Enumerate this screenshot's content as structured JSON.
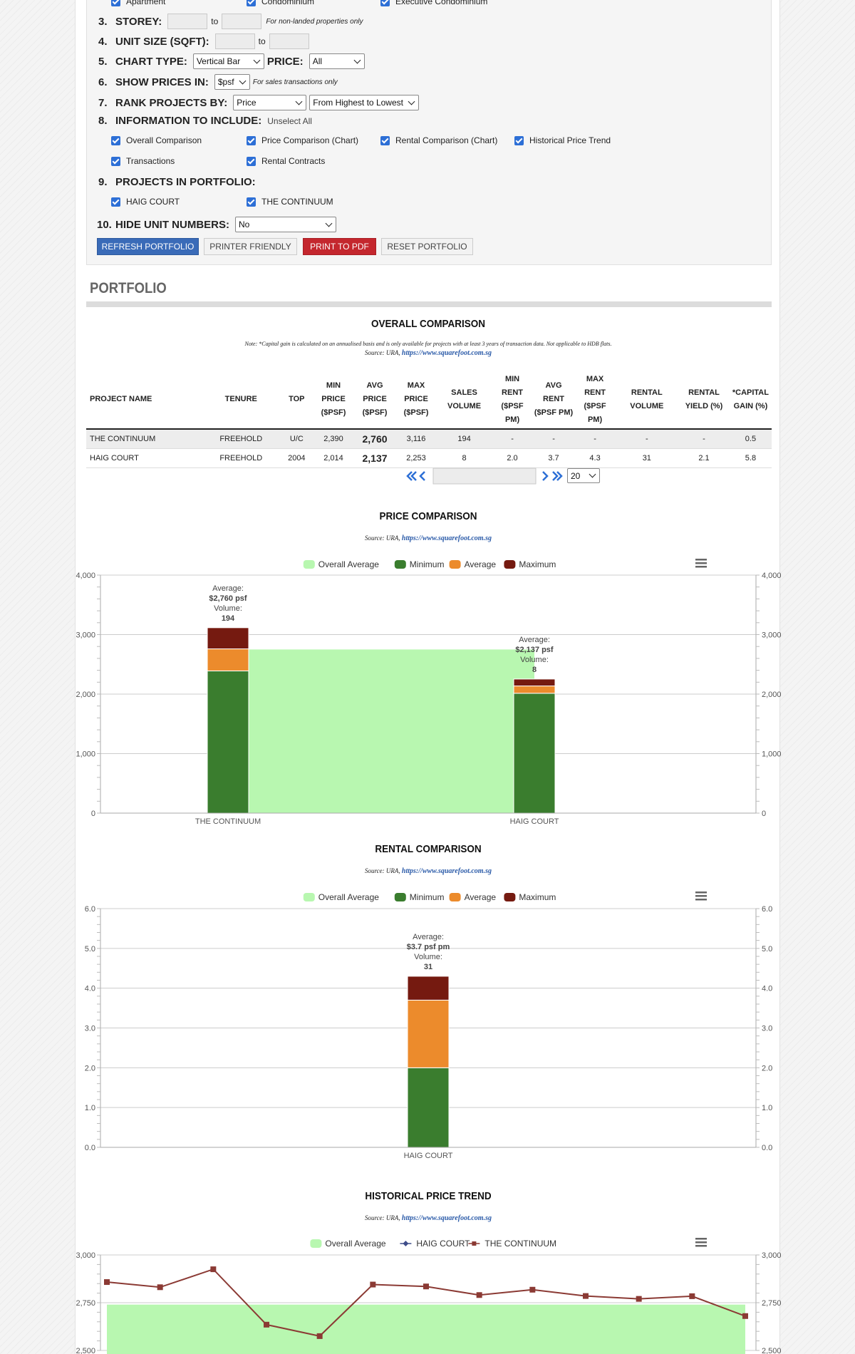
{
  "form": {
    "top_options": [
      {
        "label": "Apartment"
      },
      {
        "label": "Condominium"
      },
      {
        "label": "Executive Condominium"
      }
    ],
    "storey": {
      "num": "3.",
      "label": "STOREY:",
      "to": "to",
      "hint": "For non-landed properties only"
    },
    "unit_size": {
      "num": "4.",
      "label": "UNIT SIZE (SQFT):",
      "to": "to"
    },
    "chart_type": {
      "num": "5.",
      "label": "CHART TYPE:",
      "value": "Vertical Bar",
      "price_label": "PRICE:",
      "price_value": "All"
    },
    "show_prices": {
      "num": "6.",
      "label": "SHOW PRICES IN:",
      "value": "$psf",
      "hint": "For sales transactions only"
    },
    "rank": {
      "num": "7.",
      "label": "RANK PROJECTS BY:",
      "value": "Price",
      "order": "From Highest to Lowest"
    },
    "info": {
      "num": "8.",
      "label": "INFORMATION TO INCLUDE:",
      "unselect": "Unselect All",
      "options": [
        "Overall Comparison",
        "Price Comparison (Chart)",
        "Rental Comparison (Chart)",
        "Historical Price Trend",
        "Transactions",
        "Rental Contracts"
      ]
    },
    "projects": {
      "num": "9.",
      "label": "PROJECTS IN PORTFOLIO:",
      "items": [
        "HAIG COURT",
        "THE CONTINUUM"
      ]
    },
    "hide_units": {
      "num": "10.",
      "label": "HIDE UNIT NUMBERS:",
      "value": "No"
    },
    "buttons": {
      "refresh": "REFRESH PORTFOLIO",
      "printer": "PRINTER FRIENDLY",
      "pdf": "PRINT TO PDF",
      "reset": "RESET PORTFOLIO"
    }
  },
  "portfolio": {
    "title": "PORTFOLIO"
  },
  "overall": {
    "title": "OVERALL COMPARISON",
    "note": "Note: *Capital gain is calculated on an annualised basis and is only available for projects with at least 3 years of transaction data. Not applicable to HDB flats.",
    "source_prefix": "Source: URA,",
    "source_link": "https://www.squarefoot.com.sg",
    "headers": [
      "PROJECT NAME",
      "TENURE",
      "TOP",
      "MIN PRICE ($PSF)",
      "AVG PRICE ($PSF)",
      "MAX PRICE ($PSF)",
      "SALES VOLUME",
      "MIN RENT ($PSF PM)",
      "AVG RENT ($PSF PM)",
      "MAX RENT ($PSF PM)",
      "RENTAL VOLUME",
      "RENTAL YIELD (%)",
      "*CAPITAL GAIN (%)"
    ],
    "rows": [
      [
        "THE CONTINUUM",
        "FREEHOLD",
        "U/C",
        "2,390",
        "2,760",
        "3,116",
        "194",
        "-",
        "-",
        "-",
        "-",
        "-",
        "0.5"
      ],
      [
        "HAIG COURT",
        "FREEHOLD",
        "2004",
        "2,014",
        "2,137",
        "2,253",
        "8",
        "2.0",
        "3.7",
        "4.3",
        "31",
        "2.1",
        "5.8"
      ]
    ],
    "page_size": "20"
  },
  "colors": {
    "overall_avg": "#b8f7b0",
    "minimum": "#3a7d2e",
    "average": "#ec8b2c",
    "maximum": "#751a10",
    "line_continuum": "#8b3a34",
    "line_haig": "#3f4d8a",
    "brand_blue": "#3a6bb8",
    "brand_red": "#c4272e"
  },
  "chart_data": [
    {
      "type": "bar",
      "title": "PRICE COMPARISON",
      "source_prefix": "Source: URA,",
      "source_link": "https://www.squarefoot.com.sg",
      "legend": [
        "Overall Average",
        "Minimum",
        "Average",
        "Maximum"
      ],
      "categories": [
        "THE CONTINUUM",
        "HAIG COURT"
      ],
      "series": [
        {
          "name": "Minimum",
          "values": [
            2390,
            2014
          ]
        },
        {
          "name": "Average",
          "values": [
            2760,
            2137
          ]
        },
        {
          "name": "Maximum",
          "values": [
            3116,
            2253
          ]
        }
      ],
      "overall_average": 2750,
      "ylim": [
        0,
        4000
      ],
      "yticks": [
        "0",
        "1,000",
        "2,000",
        "3,000",
        "4,000"
      ],
      "labels": [
        {
          "line1": "Average:",
          "line2": "$2,760 psf",
          "line3": "Volume:",
          "line4": "194"
        },
        {
          "line1": "Average:",
          "line2": "$2,137 psf",
          "line3": "Volume:",
          "line4": "8"
        }
      ]
    },
    {
      "type": "bar",
      "title": "RENTAL COMPARISON",
      "source_prefix": "Source: URA,",
      "source_link": "https://www.squarefoot.com.sg",
      "legend": [
        "Overall Average",
        "Minimum",
        "Average",
        "Maximum"
      ],
      "categories": [
        "HAIG COURT"
      ],
      "series": [
        {
          "name": "Minimum",
          "values": [
            2.0
          ]
        },
        {
          "name": "Average",
          "values": [
            3.7
          ]
        },
        {
          "name": "Maximum",
          "values": [
            4.3
          ]
        }
      ],
      "ylim": [
        0,
        6
      ],
      "yticks": [
        "0.0",
        "1.0",
        "2.0",
        "3.0",
        "4.0",
        "5.0",
        "6.0"
      ],
      "labels": [
        {
          "line1": "Average:",
          "line2": "$3.7 psf pm",
          "line3": "Volume:",
          "line4": "31"
        }
      ]
    },
    {
      "type": "line",
      "title": "HISTORICAL PRICE TREND",
      "source_prefix": "Source: URA,",
      "source_link": "https://www.squarefoot.com.sg",
      "legend": [
        "Overall Average",
        "HAIG COURT",
        "THE CONTINUUM"
      ],
      "series": [
        {
          "name": "THE CONTINUUM",
          "values": [
            2858,
            2831,
            2925,
            2635,
            2575,
            2845,
            2835,
            2790,
            2818,
            2785,
            2770,
            2784,
            2680
          ]
        }
      ],
      "overall_average": 2740,
      "ylim_visible": [
        2500,
        3000
      ],
      "yticks": [
        "2,500",
        "2,750",
        "3,000"
      ]
    }
  ]
}
